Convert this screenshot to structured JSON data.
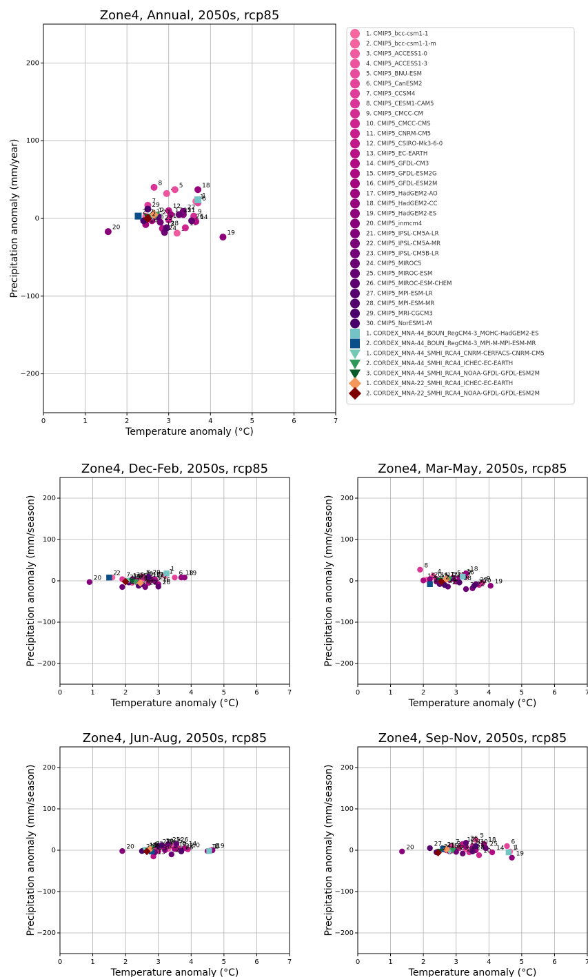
{
  "chart_data": [
    {
      "type": "scatter",
      "title": "Zone4, Annual, 2050s, rcp85",
      "xlabel": "Temperature anomaly (°C)",
      "ylabel": "Precipitation anomaly (mm/year)",
      "xlim": [
        0,
        7
      ],
      "ylim": [
        -250,
        250
      ],
      "xticks": [
        0,
        1,
        2,
        3,
        4,
        5,
        6,
        7
      ],
      "yticks": [
        {
          "value": -200,
          "label": "−200"
        },
        {
          "value": -100,
          "label": "−100"
        },
        0,
        100,
        200
      ],
      "grid": true,
      "legend": "right",
      "series": [
        {
          "name": "1. CMIP5_bcc-csm1-1",
          "label": "1",
          "color": "#f768a1",
          "marker": "circle",
          "x": 3.65,
          "y": 22
        },
        {
          "name": "2. CMIP5_bcc-csm1-1-m",
          "label": "2",
          "color": "#f462a0",
          "marker": "circle",
          "x": 2.45,
          "y": 3
        },
        {
          "name": "3. CMIP5_ACCESS1-0",
          "label": "3",
          "color": "#f05b9f",
          "marker": "circle",
          "x": 3.2,
          "y": -19
        },
        {
          "name": "4. CMIP5_ACCESS1-3",
          "label": "4",
          "color": "#ec549d",
          "marker": "circle",
          "x": 2.95,
          "y": 32
        },
        {
          "name": "5. CMIP5_BNU-ESM",
          "label": "5",
          "color": "#e84c9c",
          "marker": "circle",
          "x": 3.15,
          "y": 37
        },
        {
          "name": "6. CMIP5_CanESM2",
          "label": "6",
          "color": "#e3449a",
          "marker": "circle",
          "x": 3.7,
          "y": 20
        },
        {
          "name": "7. CMIP5_CCSM4",
          "label": "7",
          "color": "#de3c98",
          "marker": "circle",
          "x": 2.5,
          "y": 17
        },
        {
          "name": "8. CMIP5_CESM1-CAM5",
          "label": "8",
          "color": "#d93496",
          "marker": "circle",
          "x": 2.65,
          "y": 40
        },
        {
          "name": "9. CMIP5_CMCC-CM",
          "label": "9",
          "color": "#d32c93",
          "marker": "circle",
          "x": 3.6,
          "y": 3
        },
        {
          "name": "10. CMIP5_CMCC-CMS",
          "label": "10",
          "color": "#cd2490",
          "marker": "circle",
          "x": 3.4,
          "y": -12
        },
        {
          "name": "11. CMIP5_CNRM-CM5",
          "label": "11",
          "color": "#c71d8d",
          "marker": "circle",
          "x": 3.0,
          "y": -2
        },
        {
          "name": "12. CMIP5_CSIRO-Mk3-6-0",
          "label": "12",
          "color": "#c01789",
          "marker": "circle",
          "x": 3.0,
          "y": 10
        },
        {
          "name": "13. CMIP5_EC-EARTH",
          "label": "13",
          "color": "#b91186",
          "marker": "circle",
          "x": 2.85,
          "y": -13
        },
        {
          "name": "14. CMIP5_GFDL-CM3",
          "label": "14",
          "color": "#b20c84",
          "marker": "circle",
          "x": 3.65,
          "y": -4
        },
        {
          "name": "15. CMIP5_GFDL-ESM2G",
          "label": "15",
          "color": "#ab0881",
          "marker": "circle",
          "x": 2.6,
          "y": -3
        },
        {
          "name": "16. CMIP5_GFDL-ESM2M",
          "label": "16",
          "color": "#a4057f",
          "marker": "circle",
          "x": 2.45,
          "y": -8
        },
        {
          "name": "17. CMIP5_HadGEM2-AO",
          "label": "17",
          "color": "#9d037d",
          "marker": "circle",
          "x": 3.05,
          "y": 5
        },
        {
          "name": "18. CMIP5_HadGEM2-CC",
          "label": "18",
          "color": "#96027c",
          "marker": "circle",
          "x": 3.7,
          "y": 37
        },
        {
          "name": "19. CMIP5_HadGEM2-ES",
          "label": "19",
          "color": "#8f017b",
          "marker": "circle",
          "x": 4.3,
          "y": -24
        },
        {
          "name": "20. CMIP5_inmcm4",
          "label": "20",
          "color": "#88017a",
          "marker": "circle",
          "x": 1.55,
          "y": -17
        },
        {
          "name": "21. CMIP5_IPSL-CM5A-LR",
          "label": "21",
          "color": "#810178",
          "marker": "circle",
          "x": 3.35,
          "y": 5
        },
        {
          "name": "22. CMIP5_IPSL-CM5A-MR",
          "label": "22",
          "color": "#7a0177",
          "marker": "circle",
          "x": 3.35,
          "y": 9
        },
        {
          "name": "23. CMIP5_IPSL-CM5B-LR",
          "label": "23",
          "color": "#730175",
          "marker": "circle",
          "x": 2.8,
          "y": -5
        },
        {
          "name": "24. CMIP5_MIROC5",
          "label": "24",
          "color": "#6c0173",
          "marker": "circle",
          "x": 2.9,
          "y": -18
        },
        {
          "name": "25. CMIP5_MIROC-ESM",
          "label": "25",
          "color": "#650171",
          "marker": "circle",
          "x": 3.25,
          "y": 5
        },
        {
          "name": "26. CMIP5_MIROC-ESM-CHEM",
          "label": "26",
          "color": "#5e006f",
          "marker": "circle",
          "x": 3.55,
          "y": -3
        },
        {
          "name": "27. CMIP5_MPI-ESM-LR",
          "label": "27",
          "color": "#57006d",
          "marker": "circle",
          "x": 2.75,
          "y": 2
        },
        {
          "name": "28. CMIP5_MPI-ESM-MR",
          "label": "28",
          "color": "#51006c",
          "marker": "circle",
          "x": 2.95,
          "y": -12
        },
        {
          "name": "29. CMIP5_MRI-CGCM3",
          "label": "29",
          "color": "#4c006b",
          "marker": "circle",
          "x": 2.5,
          "y": 12
        },
        {
          "name": "30. CMIP5_NorESM1-M",
          "label": "30",
          "color": "#49006a",
          "marker": "circle",
          "x": 2.4,
          "y": -3
        },
        {
          "name": "1. CORDEX_MNA-44_BOUN_RegCM4-3_MOHC-HadGEM2-ES",
          "label": "1",
          "color": "#74c4c6",
          "marker": "square",
          "x": 3.7,
          "y": 24
        },
        {
          "name": "2. CORDEX_MNA-44_BOUN_RegCM4-3_MPI-M-MPI-ESM-MR",
          "label": "2",
          "color": "#0b4f8a",
          "marker": "square",
          "x": 2.27,
          "y": 3
        },
        {
          "name": "1. CORDEX_MNA-44_SMHI_RCA4_CNRM-CERFACS-CNRM-CM5",
          "label": "1",
          "color": "#74c9b6",
          "marker": "triangle",
          "x": 2.6,
          "y": 3
        },
        {
          "name": "2. CORDEX_MNA-44_SMHI_RCA4_ICHEC-EC-EARTH",
          "label": "2",
          "color": "#2e9a5a",
          "marker": "triangle",
          "x": 2.7,
          "y": 5
        },
        {
          "name": "3. CORDEX_MNA-44_SMHI_RCA4_NOAA-GFDL-GFDL-ESM2M",
          "label": "3",
          "color": "#0b5a2a",
          "marker": "triangle",
          "x": 2.5,
          "y": 2
        },
        {
          "name": "1. CORDEX_MNA-22_SMHI_RCA4_ICHEC-EC-EARTH",
          "label": "1",
          "color": "#f4975c",
          "marker": "diamond",
          "x": 2.65,
          "y": 5
        },
        {
          "name": "2. CORDEX_MNA-22_SMHI_RCA4_NOAA-GFDL-GFDL-ESM2M",
          "label": "2",
          "color": "#7f0000",
          "marker": "diamond",
          "x": 2.5,
          "y": 0
        }
      ]
    },
    {
      "type": "scatter",
      "title": "Zone4, Dec-Feb, 2050s, rcp85",
      "xlabel": "Temperature anomaly (°C)",
      "ylabel": "Precipitation anomaly (mm/season)",
      "xlim": [
        0,
        7
      ],
      "ylim": [
        -250,
        250
      ],
      "xticks": [
        0,
        1,
        2,
        3,
        4,
        5,
        6,
        7
      ],
      "yticks": [
        {
          "value": -200,
          "label": "−200"
        },
        {
          "value": -100,
          "label": "−100"
        },
        0,
        100,
        200
      ],
      "grid": true,
      "series": [
        {
          "x": 3.2,
          "y": 12
        },
        {
          "x": 1.6,
          "y": 8
        },
        {
          "x": 2.2,
          "y": -5
        },
        {
          "x": 2.5,
          "y": 5
        },
        {
          "x": 2.6,
          "y": 6
        },
        {
          "x": 3.5,
          "y": 8
        },
        {
          "x": 1.9,
          "y": 4
        },
        {
          "x": 2.5,
          "y": 10
        },
        {
          "x": 2.6,
          "y": 6
        },
        {
          "x": 2.7,
          "y": 5
        },
        {
          "x": 2.4,
          "y": 0
        },
        {
          "x": 2.8,
          "y": 3
        },
        {
          "x": 2.7,
          "y": -5
        },
        {
          "x": 2.9,
          "y": 3
        },
        {
          "x": 2.3,
          "y": 2
        },
        {
          "x": 3.0,
          "y": -8
        },
        {
          "x": 2.8,
          "y": 4
        },
        {
          "x": 3.7,
          "y": 8
        },
        {
          "x": 3.8,
          "y": 8
        },
        {
          "x": 0.9,
          "y": -3
        },
        {
          "x": 2.9,
          "y": -2
        },
        {
          "x": 2.6,
          "y": -15
        },
        {
          "x": 2.2,
          "y": 4
        },
        {
          "x": 1.9,
          "y": -15
        },
        {
          "x": 2.5,
          "y": -8
        },
        {
          "x": 3.0,
          "y": -14
        },
        {
          "x": 2.1,
          "y": -4
        },
        {
          "x": 2.4,
          "y": -12
        },
        {
          "x": 2.7,
          "y": 10
        },
        {
          "x": 2.1,
          "y": 0
        },
        {
          "x": 3.25,
          "y": 18
        },
        {
          "x": 1.5,
          "y": 8
        },
        {
          "x": 2.1,
          "y": 2
        },
        {
          "x": 2.3,
          "y": -2
        },
        {
          "x": 2.2,
          "y": 0
        },
        {
          "x": 2.45,
          "y": -5
        },
        {
          "x": 2.0,
          "y": -2
        }
      ]
    },
    {
      "type": "scatter",
      "title": "Zone4, Mar-May, 2050s, rcp85",
      "xlabel": "Temperature anomaly (°C)",
      "ylabel": "Precipitation anomaly (mm/season)",
      "xlim": [
        0,
        7
      ],
      "ylim": [
        -250,
        250
      ],
      "xticks": [
        0,
        1,
        2,
        3,
        4,
        5,
        6,
        7
      ],
      "yticks": [
        {
          "value": -200,
          "label": "−200"
        },
        {
          "value": -100,
          "label": "−100"
        },
        0,
        100,
        200
      ],
      "grid": true,
      "series": [
        {
          "x": 3.2,
          "y": 12
        },
        {
          "x": 2.1,
          "y": 3
        },
        {
          "x": 2.5,
          "y": 0
        },
        {
          "x": 2.3,
          "y": 12
        },
        {
          "x": 2.9,
          "y": 8
        },
        {
          "x": 3.3,
          "y": 10
        },
        {
          "x": 2.7,
          "y": 5
        },
        {
          "x": 1.9,
          "y": 27
        },
        {
          "x": 3.8,
          "y": -5
        },
        {
          "x": 3.7,
          "y": -10
        },
        {
          "x": 2.4,
          "y": 4
        },
        {
          "x": 2.8,
          "y": 2
        },
        {
          "x": 2.2,
          "y": -6
        },
        {
          "x": 3.0,
          "y": -2
        },
        {
          "x": 2.0,
          "y": 1
        },
        {
          "x": 2.6,
          "y": -3
        },
        {
          "x": 3.1,
          "y": 8
        },
        {
          "x": 3.3,
          "y": 18
        },
        {
          "x": 4.05,
          "y": -12
        },
        {
          "x": 2.2,
          "y": 4
        },
        {
          "x": 2.9,
          "y": 5
        },
        {
          "x": 3.5,
          "y": -18
        },
        {
          "x": 2.4,
          "y": -2
        },
        {
          "x": 3.3,
          "y": -20
        },
        {
          "x": 2.75,
          "y": -14
        },
        {
          "x": 2.5,
          "y": -8
        },
        {
          "x": 3.6,
          "y": -8
        },
        {
          "x": 3.1,
          "y": -4
        },
        {
          "x": 2.65,
          "y": -10
        },
        {
          "x": 3.55,
          "y": -12
        },
        {
          "x": 3.2,
          "y": 10
        },
        {
          "x": 2.2,
          "y": -8
        },
        {
          "x": 2.6,
          "y": 3
        },
        {
          "x": 2.8,
          "y": 5
        },
        {
          "x": 2.5,
          "y": 2
        },
        {
          "x": 2.7,
          "y": 4
        },
        {
          "x": 2.55,
          "y": -2
        }
      ]
    },
    {
      "type": "scatter",
      "title": "Zone4, Jun-Aug, 2050s, rcp85",
      "xlabel": "Temperature anomaly (°C)",
      "ylabel": "Precipitation anomaly (mm/season)",
      "xlim": [
        0,
        7
      ],
      "ylim": [
        -250,
        250
      ],
      "xticks": [
        0,
        1,
        2,
        3,
        4,
        5,
        6,
        7
      ],
      "yticks": [
        {
          "value": -200,
          "label": "−200"
        },
        {
          "value": -100,
          "label": "−100"
        },
        0,
        100,
        200
      ],
      "grid": true,
      "series": [
        {
          "x": 4.6,
          "y": 0
        },
        {
          "x": 2.8,
          "y": 2
        },
        {
          "x": 3.3,
          "y": 3
        },
        {
          "x": 3.4,
          "y": 10
        },
        {
          "x": 3.5,
          "y": 12
        },
        {
          "x": 3.6,
          "y": 5
        },
        {
          "x": 2.9,
          "y": 4
        },
        {
          "x": 2.7,
          "y": 2
        },
        {
          "x": 3.6,
          "y": 3
        },
        {
          "x": 3.9,
          "y": 2
        },
        {
          "x": 3.0,
          "y": -2
        },
        {
          "x": 3.1,
          "y": 10
        },
        {
          "x": 2.85,
          "y": -15
        },
        {
          "x": 3.8,
          "y": 5
        },
        {
          "x": 2.6,
          "y": 0
        },
        {
          "x": 3.2,
          "y": 8
        },
        {
          "x": 3.5,
          "y": 3
        },
        {
          "x": 4.5,
          "y": -2
        },
        {
          "x": 4.65,
          "y": 0
        },
        {
          "x": 1.9,
          "y": -2
        },
        {
          "x": 3.2,
          "y": 0
        },
        {
          "x": 3.7,
          "y": 0
        },
        {
          "x": 2.9,
          "y": -5
        },
        {
          "x": 3.4,
          "y": -10
        },
        {
          "x": 3.3,
          "y": 15
        },
        {
          "x": 3.55,
          "y": 15
        },
        {
          "x": 3.0,
          "y": 10
        },
        {
          "x": 3.7,
          "y": -3
        },
        {
          "x": 2.5,
          "y": -2
        },
        {
          "x": 3.1,
          "y": 12
        },
        {
          "x": 4.55,
          "y": -2
        },
        {
          "x": 2.8,
          "y": -3
        },
        {
          "x": 2.6,
          "y": 2
        },
        {
          "x": 2.8,
          "y": 5
        },
        {
          "x": 2.7,
          "y": 0
        },
        {
          "x": 2.75,
          "y": 3
        },
        {
          "x": 2.65,
          "y": -3
        }
      ]
    },
    {
      "type": "scatter",
      "title": "Zone4, Sep-Nov, 2050s, rcp85",
      "xlabel": "Temperature anomaly (°C)",
      "ylabel": "Precipitation anomaly (mm/season)",
      "xlim": [
        0,
        7
      ],
      "ylim": [
        -250,
        250
      ],
      "xticks": [
        0,
        1,
        2,
        3,
        4,
        5,
        6,
        7
      ],
      "yticks": [
        {
          "value": -200,
          "label": "−200"
        },
        {
          "value": -100,
          "label": "−100"
        },
        0,
        100,
        200
      ],
      "grid": true,
      "series": [
        {
          "x": 4.65,
          "y": -3
        },
        {
          "x": 2.9,
          "y": 5
        },
        {
          "x": 3.3,
          "y": 2
        },
        {
          "x": 3.5,
          "y": 10
        },
        {
          "x": 3.6,
          "y": 25
        },
        {
          "x": 4.55,
          "y": 10
        },
        {
          "x": 2.85,
          "y": 10
        },
        {
          "x": 3.1,
          "y": 5
        },
        {
          "x": 3.4,
          "y": -5
        },
        {
          "x": 3.7,
          "y": -12
        },
        {
          "x": 3.0,
          "y": 0
        },
        {
          "x": 3.2,
          "y": 15
        },
        {
          "x": 2.8,
          "y": -3
        },
        {
          "x": 4.1,
          "y": -5
        },
        {
          "x": 2.7,
          "y": 0
        },
        {
          "x": 3.6,
          "y": 0
        },
        {
          "x": 3.3,
          "y": 8
        },
        {
          "x": 3.85,
          "y": 15
        },
        {
          "x": 4.7,
          "y": -18
        },
        {
          "x": 1.35,
          "y": -3
        },
        {
          "x": 3.5,
          "y": 5
        },
        {
          "x": 2.6,
          "y": 2
        },
        {
          "x": 3.0,
          "y": -4
        },
        {
          "x": 3.2,
          "y": -8
        },
        {
          "x": 3.9,
          "y": 5
        },
        {
          "x": 3.3,
          "y": 18
        },
        {
          "x": 2.2,
          "y": 5
        },
        {
          "x": 3.5,
          "y": -3
        },
        {
          "x": 2.4,
          "y": -5
        },
        {
          "x": 3.6,
          "y": 10
        },
        {
          "x": 4.6,
          "y": -5
        },
        {
          "x": 2.6,
          "y": 3
        },
        {
          "x": 2.8,
          "y": -3
        },
        {
          "x": 2.9,
          "y": 0
        },
        {
          "x": 2.5,
          "y": -2
        },
        {
          "x": 2.7,
          "y": 2
        },
        {
          "x": 2.45,
          "y": -6
        }
      ]
    }
  ]
}
